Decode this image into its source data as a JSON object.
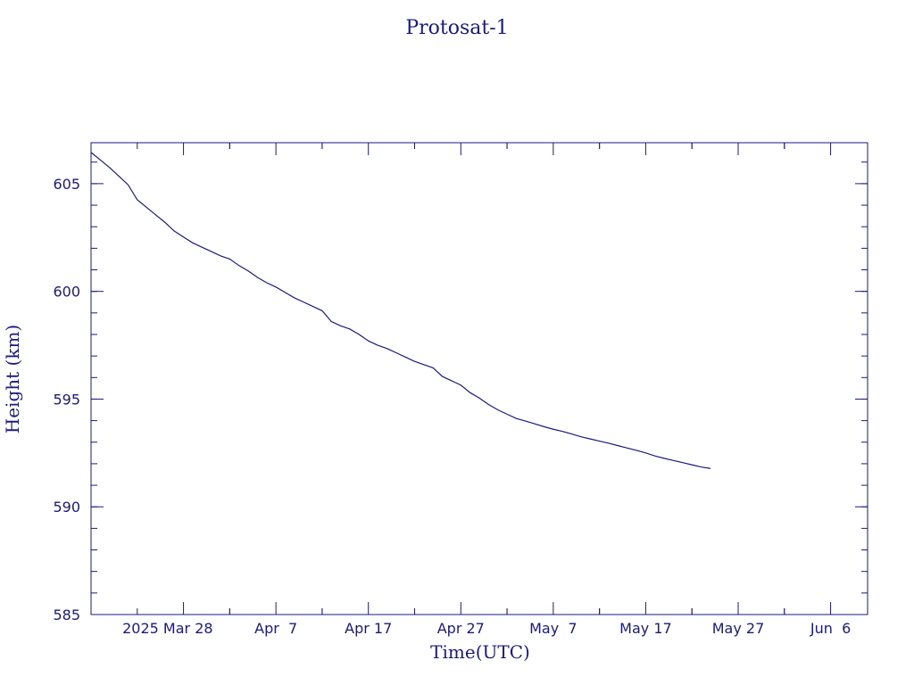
{
  "chart_data": {
    "type": "line",
    "title": "Protosat-1",
    "xlabel": "Time(UTC)",
    "ylabel": "Height (km)",
    "x": [
      "2025-03-18",
      "2025-03-19",
      "2025-03-20",
      "2025-03-21",
      "2025-03-22",
      "2025-03-23",
      "2025-03-24",
      "2025-03-25",
      "2025-03-26",
      "2025-03-27",
      "2025-03-28",
      "2025-03-29",
      "2025-03-30",
      "2025-03-31",
      "2025-04-01",
      "2025-04-02",
      "2025-04-03",
      "2025-04-04",
      "2025-04-05",
      "2025-04-06",
      "2025-04-07",
      "2025-04-08",
      "2025-04-09",
      "2025-04-10",
      "2025-04-11",
      "2025-04-12",
      "2025-04-13",
      "2025-04-14",
      "2025-04-15",
      "2025-04-16",
      "2025-04-17",
      "2025-04-18",
      "2025-04-19",
      "2025-04-20",
      "2025-04-21",
      "2025-04-22",
      "2025-04-23",
      "2025-04-24",
      "2025-04-25",
      "2025-04-26",
      "2025-04-27",
      "2025-04-28",
      "2025-04-29",
      "2025-04-30",
      "2025-05-01",
      "2025-05-02",
      "2025-05-03",
      "2025-05-04",
      "2025-05-05",
      "2025-05-06",
      "2025-05-07",
      "2025-05-08",
      "2025-05-09",
      "2025-05-10",
      "2025-05-11",
      "2025-05-12",
      "2025-05-13",
      "2025-05-14",
      "2025-05-15",
      "2025-05-16",
      "2025-05-17",
      "2025-05-18",
      "2025-05-19",
      "2025-05-20",
      "2025-05-21",
      "2025-05-22",
      "2025-05-23",
      "2025-05-24"
    ],
    "series": [
      {
        "name": "Height",
        "color": "#1a1a80",
        "values": [
          606.45,
          606.1,
          605.75,
          605.35,
          604.95,
          604.25,
          603.9,
          603.55,
          603.2,
          602.8,
          602.52,
          602.25,
          602.05,
          601.85,
          601.65,
          601.5,
          601.2,
          600.95,
          600.65,
          600.4,
          600.2,
          599.95,
          599.7,
          599.5,
          599.3,
          599.1,
          598.6,
          598.4,
          598.25,
          598.0,
          597.7,
          597.5,
          597.35,
          597.15,
          596.95,
          596.75,
          596.6,
          596.45,
          596.05,
          595.85,
          595.65,
          595.3,
          595.05,
          594.75,
          594.5,
          594.3,
          594.1,
          593.98,
          593.85,
          593.72,
          593.6,
          593.5,
          593.38,
          593.25,
          593.15,
          593.05,
          592.95,
          592.84,
          592.73,
          592.62,
          592.5,
          592.36,
          592.25,
          592.15,
          592.05,
          591.95,
          591.85,
          591.78
        ]
      }
    ],
    "xlim": [
      "2025-03-18",
      "2025-06-10"
    ],
    "xticks": [
      {
        "value": "2025-03-28",
        "label": "2025 Mar 28"
      },
      {
        "value": "2025-04-07",
        "label": "Apr  7"
      },
      {
        "value": "2025-04-17",
        "label": "Apr 17"
      },
      {
        "value": "2025-04-27",
        "label": "Apr 27"
      },
      {
        "value": "2025-05-07",
        "label": "May  7"
      },
      {
        "value": "2025-05-17",
        "label": "May 17"
      },
      {
        "value": "2025-05-27",
        "label": "May 27"
      },
      {
        "value": "2025-06-06",
        "label": "Jun  6"
      }
    ],
    "ylim": [
      585,
      606.9
    ],
    "yticks": [
      585,
      590,
      595,
      600,
      605
    ]
  }
}
